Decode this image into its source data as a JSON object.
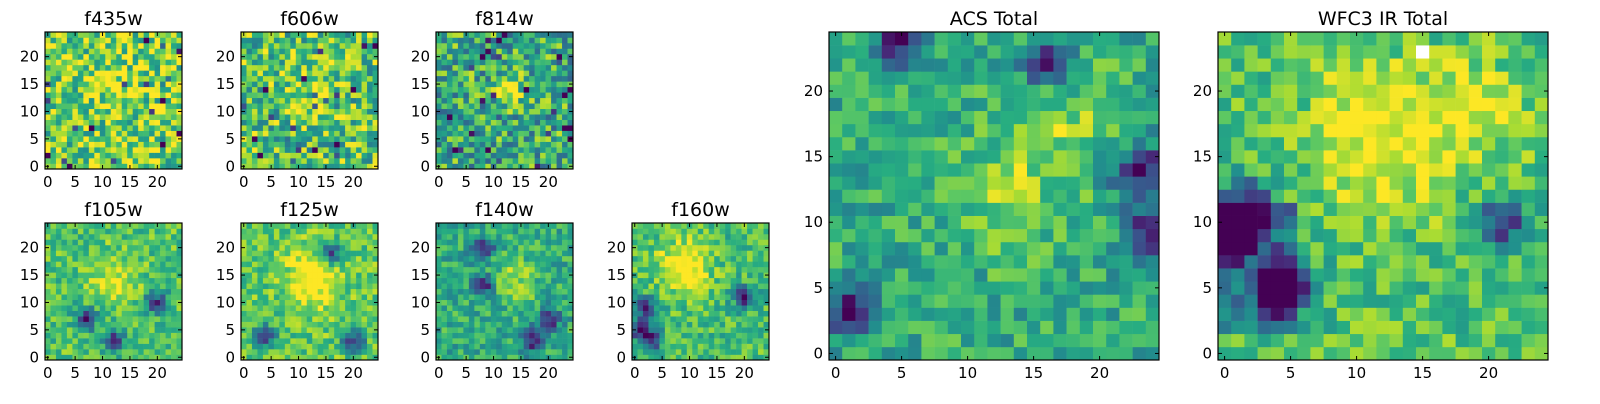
{
  "chart_data": [
    {
      "type": "heatmap",
      "title": "f435w",
      "xticks": [
        "0",
        "5",
        "10",
        "15",
        "20"
      ],
      "yticks": [
        "0",
        "5",
        "10",
        "15",
        "20"
      ],
      "xlim": [
        -0.5,
        24.5
      ],
      "ylim": [
        -0.5,
        24.5
      ],
      "grid": false,
      "legend": "none",
      "colormap": "viridis",
      "z_summary": "25x25 pixel cutout, noisy field with mean level ~0.78 of colormap range, dark (low) scattered pixels, mild brightness near center"
    },
    {
      "type": "heatmap",
      "title": "f606w",
      "xticks": [
        "0",
        "5",
        "10",
        "15",
        "20"
      ],
      "yticks": [
        "0",
        "5",
        "10",
        "15",
        "20"
      ],
      "xlim": [
        -0.5,
        24.5
      ],
      "ylim": [
        -0.5,
        24.5
      ],
      "grid": false,
      "legend": "none",
      "colormap": "viridis",
      "z_summary": "25x25 pixel cutout, noisy field mean ~0.72 with faint brightening near center"
    },
    {
      "type": "heatmap",
      "title": "f814w",
      "xticks": [
        "0",
        "5",
        "10",
        "15",
        "20"
      ],
      "yticks": [
        "0",
        "5",
        "10",
        "15",
        "20"
      ],
      "xlim": [
        -0.5,
        24.5
      ],
      "ylim": [
        -0.5,
        24.5
      ],
      "grid": false,
      "legend": "none",
      "colormap": "viridis",
      "z_summary": "25x25 pixel cutout, noisy field mean ~0.62, slightly brighter region near (13-16, 13-17)"
    },
    {
      "type": "heatmap",
      "title": "f105w",
      "xticks": [
        "0",
        "5",
        "10",
        "15",
        "20"
      ],
      "yticks": [
        "0",
        "5",
        "10",
        "15",
        "20"
      ],
      "xlim": [
        -0.5,
        24.5
      ],
      "ylim": [
        -0.5,
        24.5
      ],
      "grid": false,
      "legend": "none",
      "colormap": "viridis",
      "z_summary": "25x25 smooth field mean ~0.72, brighter band through center, dark pixels near (7,7),(20,10)"
    },
    {
      "type": "heatmap",
      "title": "f125w",
      "xticks": [
        "0",
        "5",
        "10",
        "15",
        "20"
      ],
      "yticks": [
        "0",
        "5",
        "10",
        "15",
        "20"
      ],
      "xlim": [
        -0.5,
        24.5
      ],
      "ylim": [
        -0.5,
        24.5
      ],
      "grid": false,
      "legend": "none",
      "colormap": "viridis",
      "z_summary": "25x25 smooth field mean ~0.75, bright diffuse region near center, dark pixels near (4,4),(20,3)"
    },
    {
      "type": "heatmap",
      "title": "f140w",
      "xticks": [
        "0",
        "5",
        "10",
        "15",
        "20"
      ],
      "yticks": [
        "0",
        "5",
        "10",
        "15",
        "20"
      ],
      "xlim": [
        -0.5,
        24.5
      ],
      "ylim": [
        -0.5,
        24.5
      ],
      "grid": false,
      "legend": "none",
      "colormap": "viridis",
      "z_summary": "25x25 field mean ~0.62, dark spots near (8,20),(8,13),(17,3)"
    },
    {
      "type": "heatmap",
      "title": "f160w",
      "xticks": [
        "0",
        "5",
        "10",
        "15",
        "20"
      ],
      "yticks": [
        "0",
        "5",
        "10",
        "15",
        "20"
      ],
      "xlim": [
        -0.5,
        24.5
      ],
      "ylim": [
        -0.5,
        24.5
      ],
      "grid": false,
      "legend": "none",
      "colormap": "viridis",
      "z_summary": "25x25 field mean ~0.70, bright vertical ridge around x~8-12, dark region near (1,5),(3,3)"
    },
    {
      "type": "heatmap",
      "title": "ACS Total",
      "xticks": [
        "0",
        "5",
        "10",
        "15",
        "20"
      ],
      "yticks": [
        "0",
        "5",
        "10",
        "15",
        "20"
      ],
      "xlim": [
        -0.5,
        24.5
      ],
      "ylim": [
        -0.5,
        24.5
      ],
      "grid": false,
      "legend": "none",
      "colormap": "viridis",
      "z_summary": "25x25 combined image, mean ~0.62, bright pixels near (17-18, 17-18) and (12-13, 11-13), dark pixels scattered (e.g. (5,24),(1,3))"
    },
    {
      "type": "heatmap",
      "title": "WFC3 IR Total",
      "xticks": [
        "0",
        "5",
        "10",
        "15",
        "20"
      ],
      "yticks": [
        "0",
        "5",
        "10",
        "15",
        "20"
      ],
      "xlim": [
        -0.5,
        24.5
      ],
      "ylim": [
        -0.5,
        24.5
      ],
      "grid": false,
      "legend": "none",
      "colormap": "viridis",
      "z_summary": "25x25 combined image, mean ~0.72, brightest ridge x~8-14 upper half and (18,18), dark lower-left region (0-5, 2-11), masked white pixel at (15,23)"
    }
  ]
}
